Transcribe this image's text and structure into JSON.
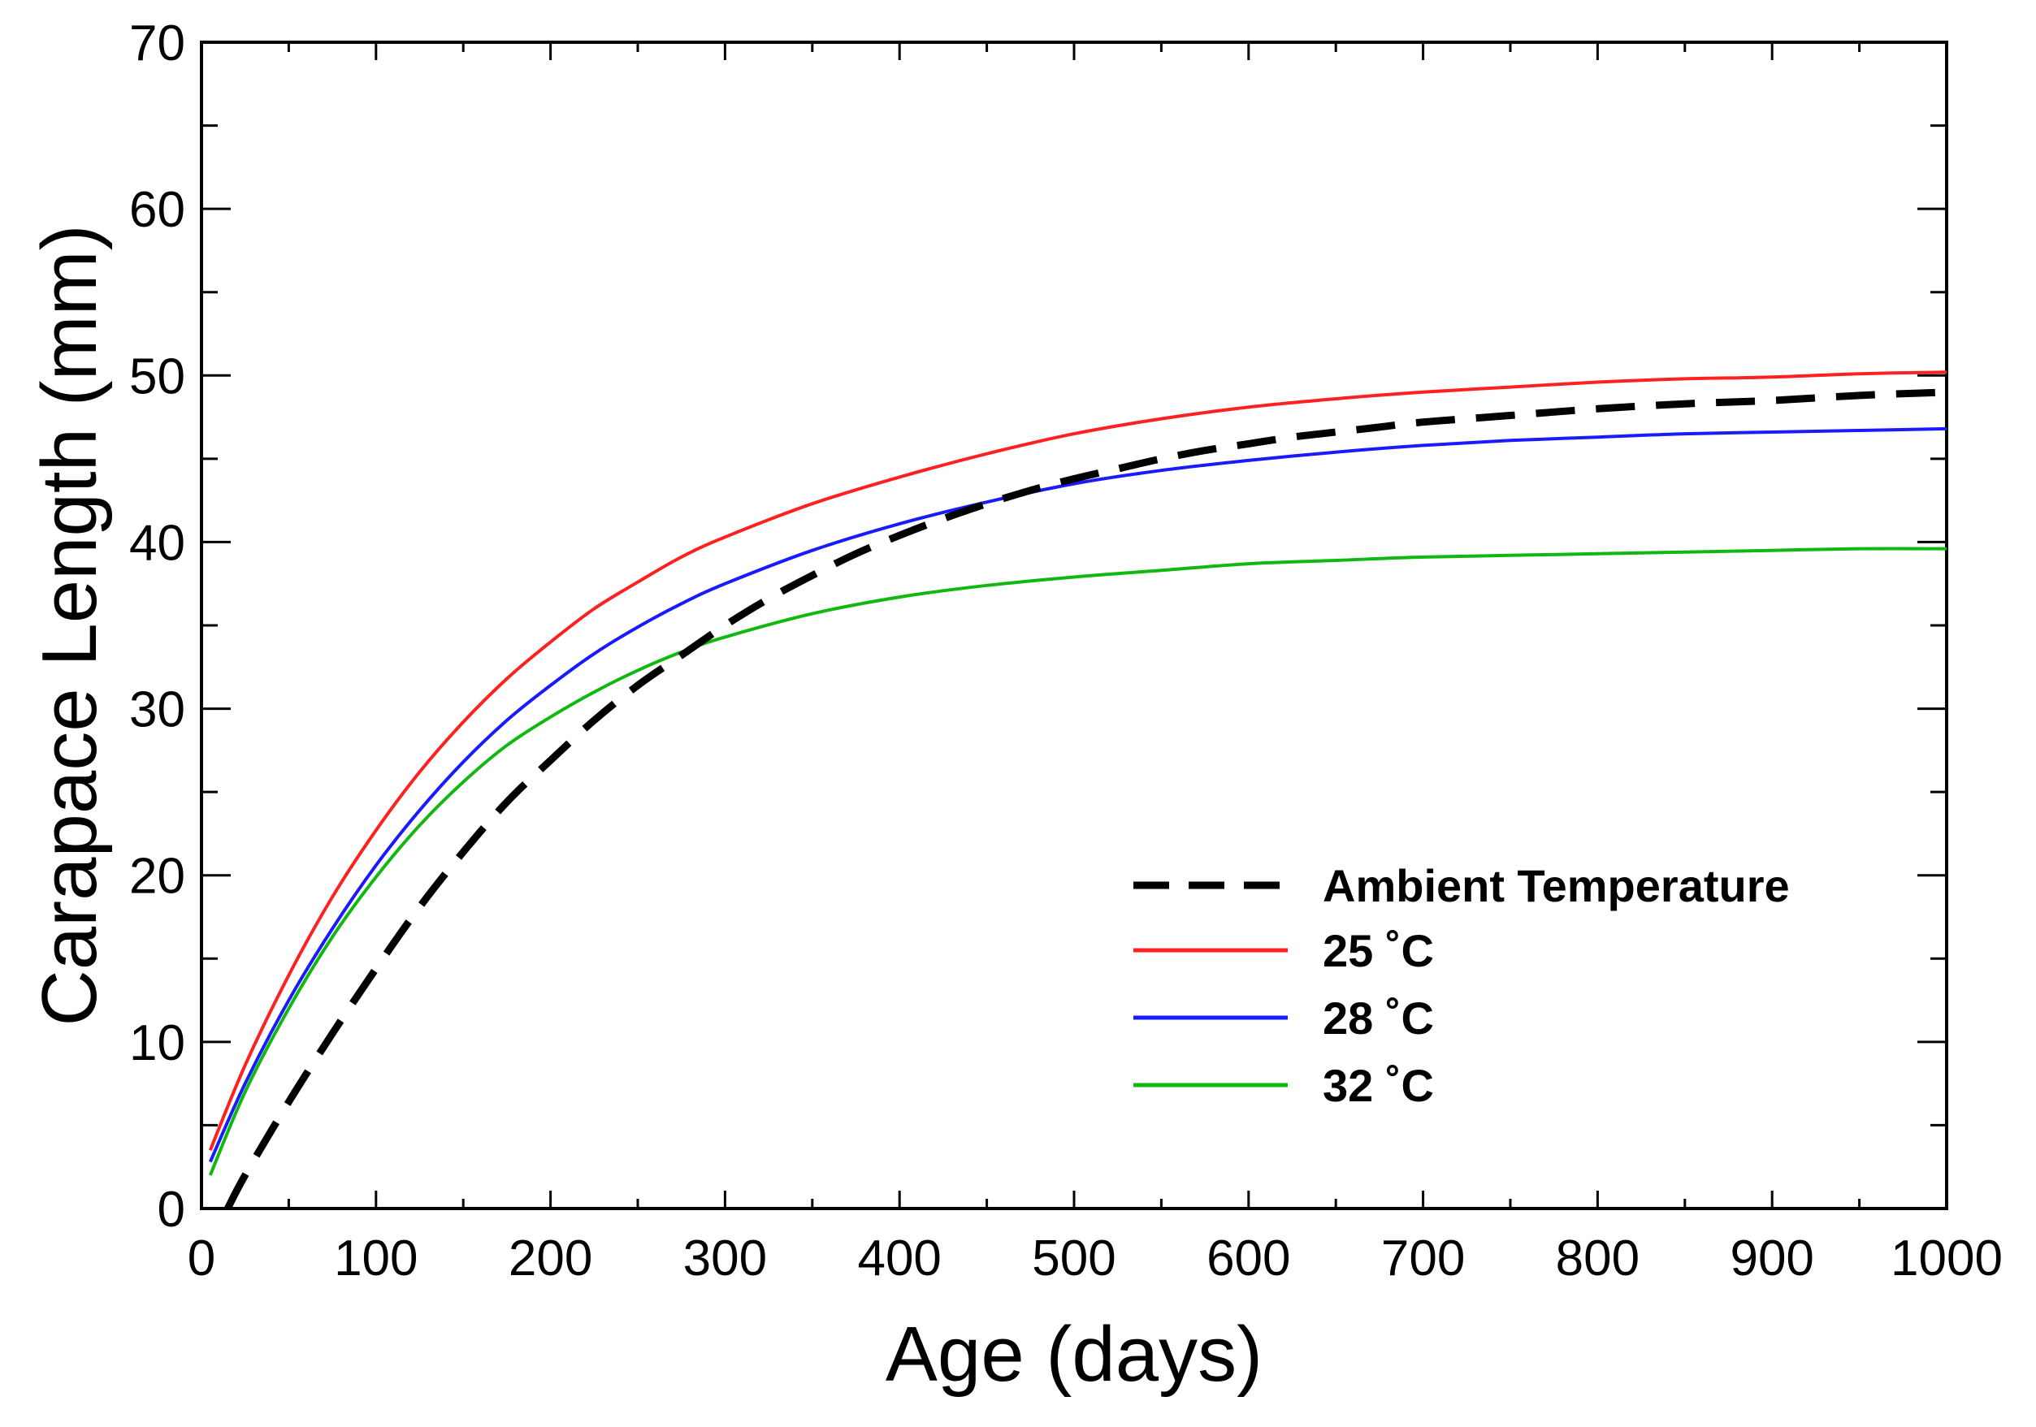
{
  "chart_data": {
    "type": "line",
    "title": "",
    "xlabel": "Age (days)",
    "ylabel": "Carapace Length (mm)",
    "xlim": [
      0,
      1000
    ],
    "ylim": [
      0,
      70
    ],
    "xticks": [
      0,
      100,
      200,
      300,
      400,
      500,
      600,
      700,
      800,
      900,
      1000
    ],
    "xtick_labels": [
      "0",
      "100",
      "200",
      "300",
      "400",
      "500",
      "600",
      "700",
      "800",
      "900",
      "1000"
    ],
    "yticks": [
      0,
      10,
      20,
      30,
      40,
      50,
      60,
      70
    ],
    "ytick_labels": [
      "0",
      "10",
      "20",
      "30",
      "40",
      "50",
      "60",
      "70"
    ],
    "grid": false,
    "legend_position": "bottom-right",
    "series": [
      {
        "name": "Ambient Temperature",
        "color": "#000000",
        "style": "dashed",
        "x": [
          15,
          25,
          50,
          75,
          100,
          125,
          150,
          175,
          200,
          225,
          250,
          275,
          300,
          325,
          350,
          375,
          400,
          425,
          450,
          475,
          500,
          525,
          550,
          575,
          600,
          625,
          650,
          675,
          700,
          750,
          800,
          850,
          900,
          950,
          1000
        ],
        "values": [
          0,
          2.0,
          6.4,
          10.5,
          14.4,
          18.1,
          21.4,
          24.4,
          26.9,
          29.3,
          31.4,
          33.2,
          35.0,
          36.6,
          38.0,
          39.3,
          40.4,
          41.4,
          42.3,
          43.1,
          43.8,
          44.4,
          45.0,
          45.5,
          45.9,
          46.3,
          46.6,
          46.9,
          47.2,
          47.6,
          48.0,
          48.3,
          48.5,
          48.8,
          49.0
        ]
      },
      {
        "name": "25 ˚C",
        "color": "#ff2020",
        "style": "solid",
        "x": [
          5,
          25,
          50,
          75,
          100,
          125,
          150,
          175,
          200,
          225,
          250,
          275,
          300,
          350,
          400,
          450,
          500,
          550,
          600,
          650,
          700,
          750,
          800,
          850,
          900,
          950,
          1000
        ],
        "values": [
          3.5,
          8.6,
          14.0,
          18.7,
          22.7,
          26.2,
          29.2,
          31.8,
          34.0,
          36.0,
          37.6,
          39.1,
          40.3,
          42.3,
          43.9,
          45.3,
          46.5,
          47.4,
          48.1,
          48.6,
          49.0,
          49.3,
          49.6,
          49.8,
          49.9,
          50.1,
          50.2
        ]
      },
      {
        "name": "28 ˚C",
        "color": "#1a1aff",
        "style": "solid",
        "x": [
          5,
          25,
          50,
          75,
          100,
          125,
          150,
          175,
          200,
          225,
          250,
          275,
          300,
          350,
          400,
          450,
          500,
          550,
          600,
          650,
          700,
          750,
          800,
          850,
          900,
          950,
          1000
        ],
        "values": [
          2.8,
          7.5,
          12.5,
          16.8,
          20.6,
          23.9,
          26.8,
          29.3,
          31.4,
          33.3,
          34.9,
          36.3,
          37.5,
          39.5,
          41.1,
          42.4,
          43.5,
          44.3,
          44.9,
          45.4,
          45.8,
          46.1,
          46.3,
          46.5,
          46.6,
          46.7,
          46.8
        ]
      },
      {
        "name": "32 ˚C",
        "color": "#10b810",
        "style": "solid",
        "x": [
          5,
          25,
          50,
          75,
          100,
          125,
          150,
          175,
          200,
          225,
          250,
          275,
          300,
          350,
          400,
          450,
          500,
          550,
          600,
          650,
          700,
          750,
          800,
          850,
          900,
          950,
          1000
        ],
        "values": [
          2.0,
          7.0,
          12.0,
          16.3,
          19.9,
          23.0,
          25.6,
          27.8,
          29.5,
          31.0,
          32.3,
          33.4,
          34.3,
          35.7,
          36.7,
          37.4,
          37.9,
          38.3,
          38.7,
          38.9,
          39.1,
          39.2,
          39.3,
          39.4,
          39.5,
          39.6,
          39.6
        ]
      }
    ]
  }
}
